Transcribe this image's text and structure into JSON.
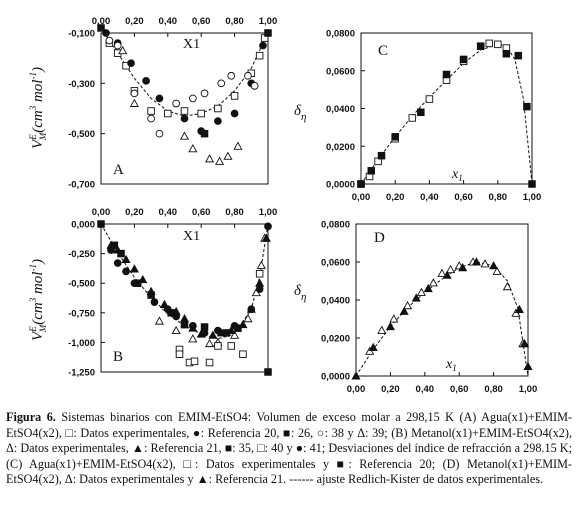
{
  "caption": {
    "prefix": "Figura 6.",
    "text": "Sistemas binarios con EMIM-EtSO4: Volumen de exceso molar a 298,15 K (A) Agua(x1)+EMIM-EtSO4(x2), □: Datos experimentales, ●: Referencia 20, ■: 26, ○: 38 y Δ: 39; (B) Metanol(x1)+EMIM-EtSO4(x2), Δ: Datos experimentales, ▲: Referencia 21, ■: 35, □: 40 y ●: 41; Desviaciones del índice de refracción a 298.15 K; (C) Agua(x1)+EMIM-EtSO4(x2), □: Datos experimentales y ■: Referencia 20; (D) Metanol(x1)+EMIM-EtSO4(x2), Δ: Datos experimentales y ▲: Referencia 21. ------ ajuste Redlich-Kister de datos experimentales."
  },
  "chart_data": [
    {
      "panel": "A",
      "type": "scatter",
      "xlabel": "X1",
      "ylabel": "V_M^E (cm³ mol⁻¹)",
      "xlim": [
        0,
        1
      ],
      "ylim": [
        -0.7,
        -0.1
      ],
      "x_axis_position": "top",
      "xticks": [
        "0,00",
        "0,20",
        "0,40",
        "0,60",
        "0,80",
        "1,00"
      ],
      "xtick_values": [
        0,
        0.2,
        0.4,
        0.6,
        0.8,
        1.0
      ],
      "yticks": [
        "-0,100",
        "-0,300",
        "-0,500",
        "-0,700"
      ],
      "ytick_values": [
        -0.1,
        -0.3,
        -0.5,
        -0.7
      ],
      "series": [
        {
          "marker": "open-square",
          "points": [
            [
              0.05,
              -0.14
            ],
            [
              0.1,
              -0.18
            ],
            [
              0.15,
              -0.23
            ],
            [
              0.2,
              -0.33
            ],
            [
              0.3,
              -0.41
            ],
            [
              0.4,
              -0.42
            ],
            [
              0.5,
              -0.41
            ],
            [
              0.6,
              -0.42
            ],
            [
              0.7,
              -0.4
            ],
            [
              0.8,
              -0.35
            ],
            [
              0.9,
              -0.26
            ],
            [
              0.95,
              -0.19
            ],
            [
              0.98,
              -0.12
            ]
          ]
        },
        {
          "marker": "filled-circle",
          "points": [
            [
              0.03,
              -0.1
            ],
            [
              0.1,
              -0.14
            ],
            [
              0.18,
              -0.22
            ],
            [
              0.27,
              -0.29
            ],
            [
              0.35,
              -0.36
            ],
            [
              0.5,
              -0.44
            ],
            [
              0.6,
              -0.49
            ],
            [
              0.7,
              -0.45
            ],
            [
              0.8,
              -0.42
            ],
            [
              0.9,
              -0.3
            ],
            [
              0.97,
              -0.15
            ]
          ]
        },
        {
          "marker": "filled-square",
          "points": [
            [
              0.0,
              -0.08
            ],
            [
              0.62,
              -0.5
            ],
            [
              1.0,
              -0.1
            ]
          ]
        },
        {
          "marker": "open-circle",
          "points": [
            [
              0.05,
              -0.13
            ],
            [
              0.1,
              -0.15
            ],
            [
              0.2,
              -0.34
            ],
            [
              0.3,
              -0.44
            ],
            [
              0.35,
              -0.5
            ],
            [
              0.45,
              -0.38
            ],
            [
              0.55,
              -0.36
            ],
            [
              0.62,
              -0.34
            ],
            [
              0.72,
              -0.3
            ],
            [
              0.78,
              -0.27
            ],
            [
              0.88,
              -0.27
            ],
            [
              0.92,
              -0.31
            ]
          ]
        },
        {
          "marker": "open-triangle",
          "points": [
            [
              0.13,
              -0.17
            ],
            [
              0.2,
              -0.38
            ],
            [
              0.5,
              -0.51
            ],
            [
              0.55,
              -0.56
            ],
            [
              0.65,
              -0.6
            ],
            [
              0.71,
              -0.61
            ],
            [
              0.76,
              -0.59
            ],
            [
              0.82,
              -0.55
            ]
          ]
        }
      ],
      "fit": [
        [
          0,
          -0.08
        ],
        [
          0.05,
          -0.13
        ],
        [
          0.1,
          -0.18
        ],
        [
          0.2,
          -0.28
        ],
        [
          0.3,
          -0.36
        ],
        [
          0.4,
          -0.41
        ],
        [
          0.5,
          -0.43
        ],
        [
          0.6,
          -0.42
        ],
        [
          0.7,
          -0.39
        ],
        [
          0.8,
          -0.33
        ],
        [
          0.9,
          -0.24
        ],
        [
          0.95,
          -0.17
        ],
        [
          1.0,
          -0.08
        ]
      ]
    },
    {
      "panel": "B",
      "type": "scatter",
      "xlabel": "X1",
      "ylabel": "V_M^E (cm³ mol⁻¹)",
      "xlim": [
        0,
        1
      ],
      "ylim": [
        -1.25,
        0
      ],
      "x_axis_position": "top",
      "xticks": [
        "0,00",
        "0,20",
        "0,40",
        "0,60",
        "0,80",
        "1,00"
      ],
      "xtick_values": [
        0,
        0.2,
        0.4,
        0.6,
        0.8,
        1.0
      ],
      "yticks": [
        "0,000",
        "-0,250",
        "-0,500",
        "-0,750",
        "-1,000",
        "-1,250"
      ],
      "ytick_values": [
        0,
        -0.25,
        -0.5,
        -0.75,
        -1.0,
        -1.25
      ],
      "series": [
        {
          "marker": "open-triangle",
          "points": [
            [
              0.35,
              -0.82
            ],
            [
              0.45,
              -0.9
            ],
            [
              0.55,
              -0.97
            ],
            [
              0.65,
              -1.01
            ],
            [
              0.7,
              -1.0
            ],
            [
              0.8,
              -0.94
            ],
            [
              0.88,
              -0.8
            ],
            [
              0.93,
              -0.58
            ],
            [
              0.96,
              -0.35
            ],
            [
              0.98,
              -0.12
            ]
          ]
        },
        {
          "marker": "filled-triangle",
          "points": [
            [
              0.06,
              -0.18
            ],
            [
              0.1,
              -0.22
            ],
            [
              0.15,
              -0.3
            ],
            [
              0.2,
              -0.38
            ],
            [
              0.25,
              -0.47
            ],
            [
              0.3,
              -0.57
            ],
            [
              0.38,
              -0.68
            ],
            [
              0.45,
              -0.74
            ],
            [
              0.5,
              -0.8
            ],
            [
              0.55,
              -0.88
            ],
            [
              0.6,
              -0.93
            ],
            [
              0.67,
              -0.94
            ],
            [
              0.72,
              -0.92
            ],
            [
              0.78,
              -0.9
            ],
            [
              0.85,
              -0.85
            ],
            [
              0.9,
              -0.72
            ],
            [
              0.95,
              -0.5
            ],
            [
              0.99,
              -0.12
            ]
          ]
        },
        {
          "marker": "filled-square",
          "points": [
            [
              0.0,
              0.0
            ],
            [
              0.08,
              -0.18
            ],
            [
              0.12,
              -0.25
            ],
            [
              0.22,
              -0.5
            ],
            [
              0.3,
              -0.6
            ],
            [
              0.42,
              -0.75
            ],
            [
              0.5,
              -0.85
            ],
            [
              0.62,
              -0.87
            ],
            [
              0.75,
              -0.92
            ],
            [
              0.82,
              -0.88
            ],
            [
              1.0,
              -1.25
            ]
          ]
        },
        {
          "marker": "open-square",
          "points": [
            [
              0.47,
              -1.06
            ],
            [
              0.47,
              -1.1
            ],
            [
              0.53,
              -1.17
            ],
            [
              0.56,
              -1.16
            ],
            [
              0.65,
              -1.17
            ],
            [
              0.7,
              -1.03
            ],
            [
              0.78,
              -1.03
            ],
            [
              0.85,
              -1.1
            ],
            [
              0.95,
              -0.42
            ]
          ]
        },
        {
          "marker": "filled-circle",
          "points": [
            [
              0.06,
              -0.22
            ],
            [
              0.1,
              -0.33
            ],
            [
              0.15,
              -0.4
            ],
            [
              0.2,
              -0.5
            ],
            [
              0.32,
              -0.66
            ],
            [
              0.4,
              -0.72
            ],
            [
              0.45,
              -0.78
            ],
            [
              0.55,
              -0.86
            ],
            [
              0.62,
              -0.92
            ],
            [
              0.7,
              -0.9
            ],
            [
              0.8,
              -0.86
            ],
            [
              0.9,
              -0.72
            ],
            [
              0.95,
              -0.55
            ],
            [
              1.0,
              -0.02
            ]
          ]
        }
      ],
      "fit": [
        [
          0,
          0.0
        ],
        [
          0.05,
          -0.12
        ],
        [
          0.1,
          -0.24
        ],
        [
          0.2,
          -0.45
        ],
        [
          0.3,
          -0.62
        ],
        [
          0.4,
          -0.76
        ],
        [
          0.5,
          -0.86
        ],
        [
          0.6,
          -0.93
        ],
        [
          0.7,
          -0.97
        ],
        [
          0.8,
          -0.93
        ],
        [
          0.9,
          -0.72
        ],
        [
          0.95,
          -0.45
        ],
        [
          1.0,
          0.0
        ]
      ]
    },
    {
      "panel": "C",
      "type": "scatter",
      "xlabel": "x1",
      "ylabel": "δη",
      "xlim": [
        0,
        1
      ],
      "ylim": [
        0,
        0.08
      ],
      "x_axis_position": "bottom",
      "xticks": [
        "0,00",
        "0,20",
        "0,40",
        "0,60",
        "0,80",
        "1,00"
      ],
      "xtick_values": [
        0,
        0.2,
        0.4,
        0.6,
        0.8,
        1.0
      ],
      "yticks": [
        "0,0000",
        "0,0200",
        "0,0400",
        "0,0600",
        "0,0800"
      ],
      "ytick_values": [
        0,
        0.02,
        0.04,
        0.06,
        0.08
      ],
      "series": [
        {
          "marker": "open-square",
          "points": [
            [
              0.0,
              0.0
            ],
            [
              0.05,
              0.004
            ],
            [
              0.1,
              0.012
            ],
            [
              0.2,
              0.024
            ],
            [
              0.3,
              0.035
            ],
            [
              0.4,
              0.045
            ],
            [
              0.5,
              0.055
            ],
            [
              0.6,
              0.065
            ],
            [
              0.7,
              0.073
            ],
            [
              0.75,
              0.0745
            ],
            [
              0.8,
              0.074
            ],
            [
              0.85,
              0.072
            ]
          ]
        },
        {
          "marker": "filled-square",
          "points": [
            [
              0.0,
              0.0
            ],
            [
              0.06,
              0.007
            ],
            [
              0.12,
              0.015
            ],
            [
              0.2,
              0.025
            ],
            [
              0.35,
              0.038
            ],
            [
              0.5,
              0.058
            ],
            [
              0.6,
              0.066
            ],
            [
              0.7,
              0.073
            ],
            [
              0.85,
              0.069
            ],
            [
              0.92,
              0.068
            ],
            [
              0.97,
              0.041
            ],
            [
              1.0,
              0.0
            ]
          ]
        }
      ],
      "fit": [
        [
          0,
          0.0
        ],
        [
          0.1,
          0.013
        ],
        [
          0.2,
          0.025
        ],
        [
          0.3,
          0.036
        ],
        [
          0.4,
          0.046
        ],
        [
          0.5,
          0.055
        ],
        [
          0.6,
          0.064
        ],
        [
          0.7,
          0.071
        ],
        [
          0.8,
          0.074
        ],
        [
          0.85,
          0.073
        ],
        [
          0.9,
          0.066
        ],
        [
          0.95,
          0.045
        ],
        [
          1.0,
          0.0
        ]
      ]
    },
    {
      "panel": "D",
      "type": "scatter",
      "xlabel": "x1",
      "ylabel": "δη",
      "xlim": [
        0,
        1
      ],
      "ylim": [
        0,
        0.08
      ],
      "x_axis_position": "bottom",
      "xticks": [
        "0,00",
        "0,20",
        "0,40",
        "0,60",
        "0,80",
        "1,00"
      ],
      "xtick_values": [
        0,
        0.2,
        0.4,
        0.6,
        0.8,
        1.0
      ],
      "yticks": [
        "0,0000",
        "0,0200",
        "0,0400",
        "0,0600",
        "0,0800"
      ],
      "ytick_values": [
        0,
        0.02,
        0.04,
        0.06,
        0.08
      ],
      "series": [
        {
          "marker": "open-triangle",
          "points": [
            [
              0.08,
              0.013
            ],
            [
              0.15,
              0.024
            ],
            [
              0.22,
              0.03
            ],
            [
              0.3,
              0.037
            ],
            [
              0.38,
              0.044
            ],
            [
              0.45,
              0.049
            ],
            [
              0.5,
              0.054
            ],
            [
              0.55,
              0.056
            ],
            [
              0.6,
              0.058
            ],
            [
              0.68,
              0.06
            ],
            [
              0.75,
              0.059
            ],
            [
              0.82,
              0.055
            ],
            [
              0.88,
              0.047
            ],
            [
              0.93,
              0.033
            ],
            [
              0.97,
              0.017
            ]
          ]
        },
        {
          "marker": "filled-triangle",
          "points": [
            [
              0.0,
              0.0
            ],
            [
              0.1,
              0.015
            ],
            [
              0.2,
              0.026
            ],
            [
              0.28,
              0.034
            ],
            [
              0.35,
              0.041
            ],
            [
              0.42,
              0.046
            ],
            [
              0.53,
              0.053
            ],
            [
              0.62,
              0.057
            ],
            [
              0.7,
              0.06
            ],
            [
              0.8,
              0.058
            ],
            [
              0.95,
              0.035
            ],
            [
              0.98,
              0.017
            ],
            [
              1.0,
              0.005
            ]
          ]
        }
      ],
      "fit": [
        [
          0,
          0.0
        ],
        [
          0.1,
          0.014
        ],
        [
          0.2,
          0.026
        ],
        [
          0.3,
          0.036
        ],
        [
          0.4,
          0.044
        ],
        [
          0.5,
          0.051
        ],
        [
          0.6,
          0.057
        ],
        [
          0.7,
          0.06
        ],
        [
          0.8,
          0.058
        ],
        [
          0.88,
          0.05
        ],
        [
          0.94,
          0.036
        ],
        [
          1.0,
          0.0
        ]
      ]
    }
  ]
}
